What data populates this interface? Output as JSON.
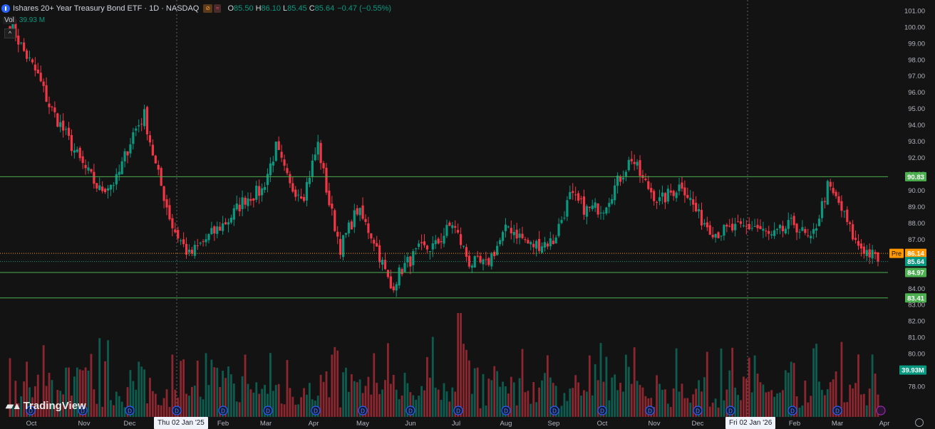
{
  "header": {
    "title": "Ishares 20+ Year Treasury Bond ETF · 1D · NASDAQ",
    "badge1": "⊘",
    "badge2": "≈",
    "open_label": "O",
    "open": "85.50",
    "high_label": "H",
    "high": "86.10",
    "low_label": "L",
    "low": "85.45",
    "close_label": "C",
    "close": "85.64",
    "change": "−0.47 (−0.55%)"
  },
  "volume_header": {
    "label": "Vol",
    "value": "39.93 M"
  },
  "brand": {
    "name": "TradingView"
  },
  "date_badges": [
    "Thu 02 Jan '25",
    "Fri 02 Jan '26"
  ],
  "colors": {
    "up": "#089981",
    "down": "#f23645",
    "level": "#4caf50",
    "pre": "#ff9800",
    "background": "#131313"
  },
  "chart_data": {
    "type": "candlestick",
    "title": "Ishares 20+ Year Treasury Bond ETF",
    "interval": "1D",
    "exchange": "NASDAQ",
    "ylim": [
      77.0,
      101.3
    ],
    "y_ticks": [
      78.0,
      79.0,
      80.0,
      81.0,
      82.0,
      83.0,
      84.0,
      85.0,
      86.0,
      87.0,
      88.0,
      89.0,
      90.0,
      91.0,
      92.0,
      93.0,
      94.0,
      95.0,
      96.0,
      97.0,
      98.0,
      99.0,
      100.0,
      101.0
    ],
    "x_ticks": [
      "Oct",
      "Nov",
      "Dec",
      "Feb",
      "Mar",
      "Apr",
      "May",
      "Jun",
      "Jul",
      "Aug",
      "Sep",
      "Oct",
      "Nov",
      "Dec",
      "Feb",
      "Mar",
      "Apr"
    ],
    "horizontal_levels": [
      90.83,
      84.97,
      83.41
    ],
    "price_labels": [
      {
        "label": "90.83",
        "value": 90.83,
        "kind": "level"
      },
      {
        "label": "86.14",
        "value": 86.14,
        "kind": "pre",
        "tag": "Pre"
      },
      {
        "label": "85.64",
        "value": 85.64,
        "kind": "last"
      },
      {
        "label": "84.97",
        "value": 84.97,
        "kind": "level"
      },
      {
        "label": "83.41",
        "value": 83.41,
        "kind": "level"
      },
      {
        "label": "39.93M",
        "value": 79.0,
        "kind": "volume"
      }
    ],
    "price_path": [
      {
        "bar": 0,
        "close": 100.2
      },
      {
        "bar": 5,
        "close": 98.5
      },
      {
        "bar": 10,
        "close": 97.0
      },
      {
        "bar": 14,
        "close": 95.2
      },
      {
        "bar": 18,
        "close": 94.0
      },
      {
        "bar": 25,
        "close": 91.8
      },
      {
        "bar": 32,
        "close": 90.0
      },
      {
        "bar": 38,
        "close": 90.6
      },
      {
        "bar": 44,
        "close": 93.5
      },
      {
        "bar": 48,
        "close": 94.6
      },
      {
        "bar": 52,
        "close": 91.5
      },
      {
        "bar": 58,
        "close": 87.8
      },
      {
        "bar": 64,
        "close": 86.0
      },
      {
        "bar": 70,
        "close": 87.0
      },
      {
        "bar": 78,
        "close": 88.2
      },
      {
        "bar": 84,
        "close": 89.5
      },
      {
        "bar": 90,
        "close": 90.0
      },
      {
        "bar": 95,
        "close": 92.6
      },
      {
        "bar": 100,
        "close": 90.2
      },
      {
        "bar": 105,
        "close": 89.8
      },
      {
        "bar": 110,
        "close": 92.8
      },
      {
        "bar": 114,
        "close": 89.2
      },
      {
        "bar": 118,
        "close": 86.5
      },
      {
        "bar": 124,
        "close": 88.8
      },
      {
        "bar": 130,
        "close": 87.0
      },
      {
        "bar": 136,
        "close": 84.0
      },
      {
        "bar": 140,
        "close": 85.2
      },
      {
        "bar": 146,
        "close": 86.3
      },
      {
        "bar": 152,
        "close": 86.6
      },
      {
        "bar": 158,
        "close": 88.0
      },
      {
        "bar": 164,
        "close": 85.6
      },
      {
        "bar": 170,
        "close": 85.4
      },
      {
        "bar": 178,
        "close": 87.8
      },
      {
        "bar": 186,
        "close": 86.6
      },
      {
        "bar": 194,
        "close": 86.9
      },
      {
        "bar": 200,
        "close": 89.6
      },
      {
        "bar": 206,
        "close": 88.8
      },
      {
        "bar": 212,
        "close": 89.0
      },
      {
        "bar": 218,
        "close": 90.8
      },
      {
        "bar": 222,
        "close": 92.0
      },
      {
        "bar": 226,
        "close": 90.6
      },
      {
        "bar": 232,
        "close": 89.3
      },
      {
        "bar": 240,
        "close": 90.4
      },
      {
        "bar": 246,
        "close": 88.4
      },
      {
        "bar": 252,
        "close": 87.4
      },
      {
        "bar": 258,
        "close": 87.6
      },
      {
        "bar": 266,
        "close": 87.8
      },
      {
        "bar": 272,
        "close": 87.1
      },
      {
        "bar": 280,
        "close": 88.0
      },
      {
        "bar": 286,
        "close": 86.8
      },
      {
        "bar": 292,
        "close": 90.2
      },
      {
        "bar": 296,
        "close": 89.2
      },
      {
        "bar": 302,
        "close": 86.8
      },
      {
        "bar": 308,
        "close": 86.0
      },
      {
        "bar": 310,
        "close": 85.64
      }
    ],
    "volume_range_M": [
      5,
      62
    ]
  }
}
